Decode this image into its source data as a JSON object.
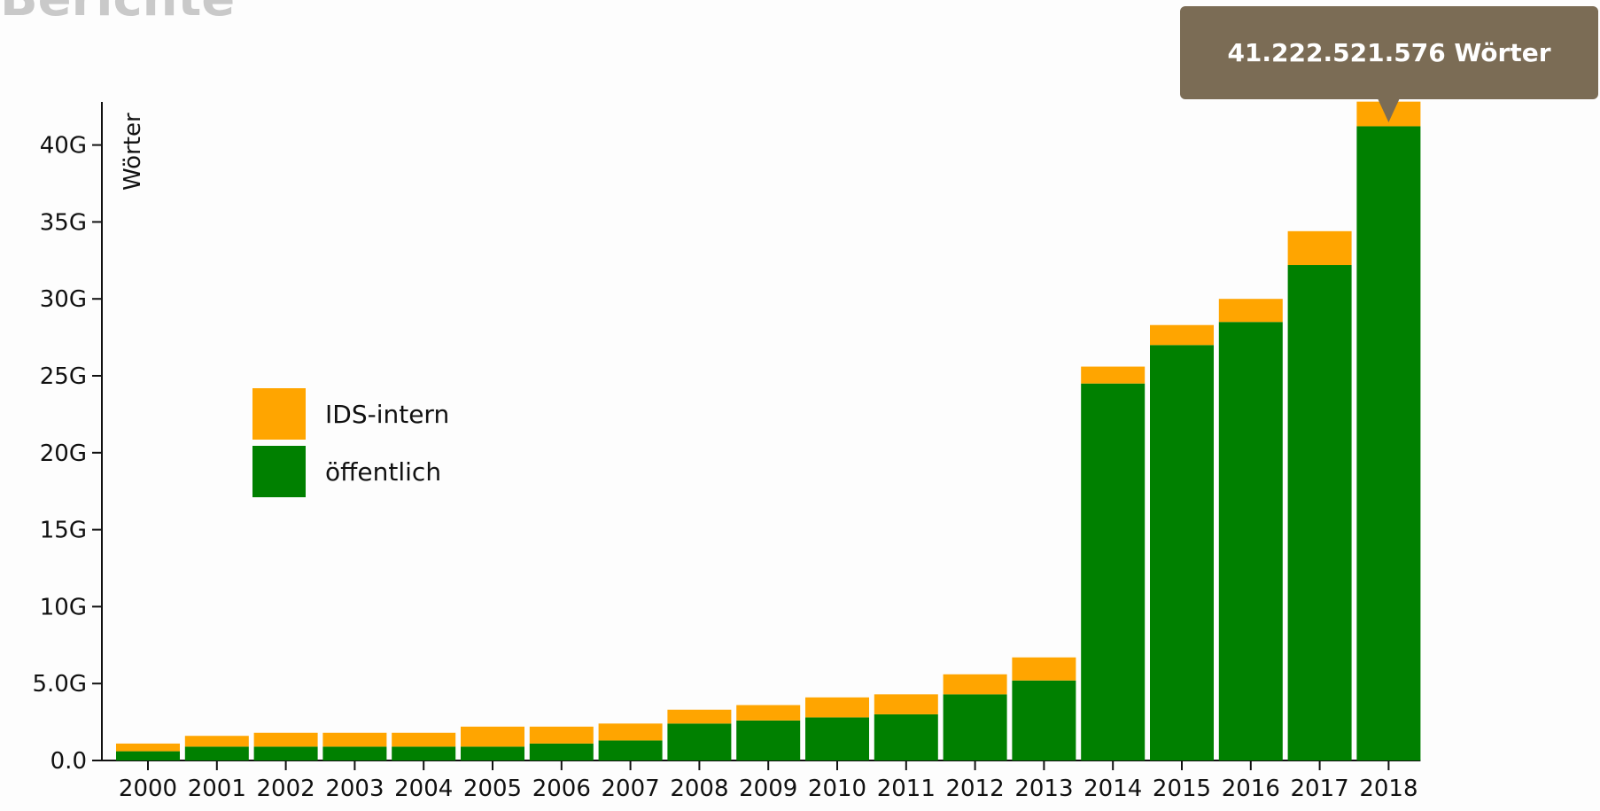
{
  "page": {
    "header_title": "Berichte"
  },
  "chart_data": {
    "type": "bar",
    "stacked": true,
    "categories": [
      "2000",
      "2001",
      "2002",
      "2003",
      "2004",
      "2005",
      "2006",
      "2007",
      "2008",
      "2009",
      "2010",
      "2011",
      "2012",
      "2013",
      "2014",
      "2015",
      "2016",
      "2017",
      "2018"
    ],
    "series": [
      {
        "name": "öffentlich",
        "color": "#008000",
        "values": [
          0.6,
          0.9,
          0.9,
          0.9,
          0.9,
          0.9,
          1.1,
          1.3,
          2.4,
          2.6,
          2.8,
          3.0,
          4.3,
          5.2,
          24.5,
          27.0,
          28.5,
          32.2,
          41.22
        ]
      },
      {
        "name": "IDS-intern",
        "color": "#ffa500",
        "values": [
          0.5,
          0.7,
          0.9,
          0.9,
          0.9,
          1.3,
          1.1,
          1.1,
          0.9,
          1.0,
          1.3,
          1.3,
          1.3,
          1.5,
          1.1,
          1.3,
          1.5,
          2.2,
          1.6
        ]
      }
    ],
    "ylabel": "Wörter",
    "xlabel": "",
    "ylim": [
      0,
      42.8
    ],
    "y_ticks": [
      0,
      5,
      10,
      15,
      20,
      25,
      30,
      35,
      40
    ],
    "y_tick_labels": [
      "0.0",
      "5.0G",
      "10G",
      "15G",
      "20G",
      "25G",
      "30G",
      "35G",
      "40G"
    ],
    "legend": {
      "placement": "upper-left",
      "order": [
        "IDS-intern",
        "öffentlich"
      ]
    },
    "grid": false,
    "tooltip": {
      "text": "41.222.521.576 Wörter",
      "category": "2018",
      "background": "#7b6c55"
    }
  }
}
